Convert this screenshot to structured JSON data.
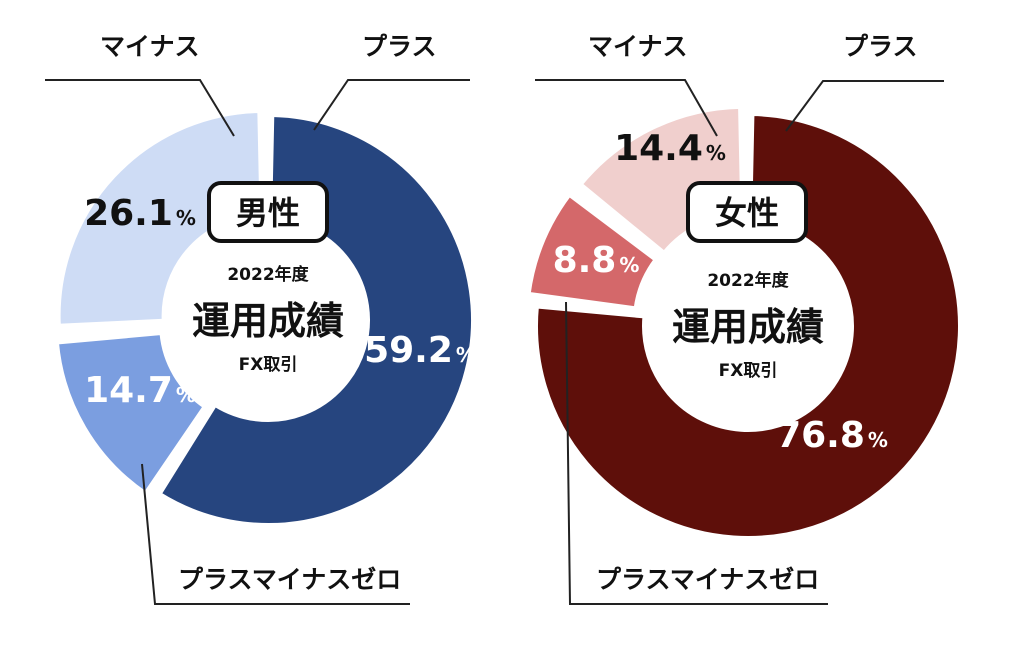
{
  "chart_data": [
    {
      "type": "pie",
      "badge": "男性",
      "center": {
        "year": "2022年度",
        "title": "運用成績",
        "subtitle": "FX取引"
      },
      "slices": [
        {
          "label": "プラス",
          "value": 59.2,
          "display": "59.2",
          "color": "#26457f",
          "text_color": "#ffffff"
        },
        {
          "label": "プラスマイナスゼロ",
          "value": 14.7,
          "display": "14.7",
          "color": "#7b9ee0",
          "text_color": "#ffffff"
        },
        {
          "label": "マイナス",
          "value": 26.1,
          "display": "26.1",
          "color": "#cedcf5",
          "text_color": "#111111"
        }
      ]
    },
    {
      "type": "pie",
      "badge": "女性",
      "center": {
        "year": "2022年度",
        "title": "運用成績",
        "subtitle": "FX取引"
      },
      "slices": [
        {
          "label": "プラス",
          "value": 76.8,
          "display": "76.8",
          "color": "#5e0f0a",
          "text_color": "#ffffff"
        },
        {
          "label": "プラスマイナスゼロ",
          "value": 8.8,
          "display": "8.8",
          "color": "#d4686a",
          "text_color": "#ffffff"
        },
        {
          "label": "マイナス",
          "value": 14.4,
          "display": "14.4",
          "color": "#f0cfcd",
          "text_color": "#111111"
        }
      ]
    }
  ],
  "percent_sign": "%"
}
